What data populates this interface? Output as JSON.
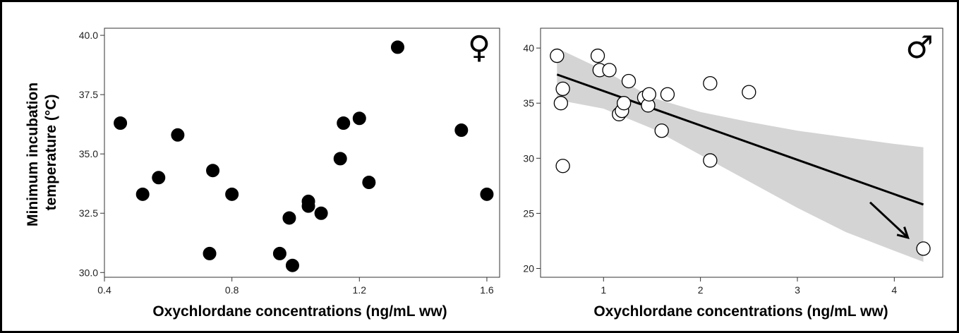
{
  "chart_data": [
    {
      "type": "scatter",
      "panel": "female",
      "symbol": "♀",
      "xlabel": "Oxychlordane concentrations (ng/mL ww)",
      "ylabel_lines": [
        "Minimum incubation",
        "temperature (°C)"
      ],
      "xlim": [
        0.4,
        1.64
      ],
      "ylim": [
        29.8,
        40.3
      ],
      "xticks": [
        0.4,
        0.8,
        1.2,
        1.6
      ],
      "xtick_labels": [
        "0.4",
        "0.8",
        "1.2",
        "1.6"
      ],
      "yticks": [
        30.0,
        32.5,
        35.0,
        37.5,
        40.0
      ],
      "ytick_labels": [
        "30.0",
        "32.5",
        "35.0",
        "37.5",
        "40.0"
      ],
      "grid": false,
      "marker": "filled-circle",
      "marker_color": "#000000",
      "points": [
        {
          "x": 0.45,
          "y": 36.3
        },
        {
          "x": 0.52,
          "y": 33.3
        },
        {
          "x": 0.57,
          "y": 34.0
        },
        {
          "x": 0.63,
          "y": 35.8
        },
        {
          "x": 0.73,
          "y": 30.8
        },
        {
          "x": 0.74,
          "y": 34.3
        },
        {
          "x": 0.8,
          "y": 33.3
        },
        {
          "x": 0.95,
          "y": 30.8
        },
        {
          "x": 0.98,
          "y": 32.3
        },
        {
          "x": 0.99,
          "y": 30.3
        },
        {
          "x": 1.04,
          "y": 32.8
        },
        {
          "x": 1.04,
          "y": 33.0
        },
        {
          "x": 1.08,
          "y": 32.5
        },
        {
          "x": 1.14,
          "y": 34.8
        },
        {
          "x": 1.15,
          "y": 36.3
        },
        {
          "x": 1.2,
          "y": 36.5
        },
        {
          "x": 1.23,
          "y": 33.8
        },
        {
          "x": 1.32,
          "y": 39.5
        },
        {
          "x": 1.52,
          "y": 36.0
        },
        {
          "x": 1.6,
          "y": 33.3
        }
      ]
    },
    {
      "type": "scatter",
      "panel": "male",
      "symbol": "♂",
      "xlabel": "Oxychlordane concentrations (ng/mL ww)",
      "xlim": [
        0.35,
        4.5
      ],
      "ylim": [
        19.2,
        41.8
      ],
      "xticks": [
        1,
        2,
        3,
        4
      ],
      "xtick_labels": [
        "1",
        "2",
        "3",
        "4"
      ],
      "yticks": [
        20,
        25,
        30,
        35,
        40
      ],
      "ytick_labels": [
        "20",
        "25",
        "30",
        "35",
        "40"
      ],
      "grid": false,
      "marker": "open-circle",
      "marker_color": "#000000",
      "band_color": "#d4d4d4",
      "points": [
        {
          "x": 0.52,
          "y": 39.3
        },
        {
          "x": 0.56,
          "y": 35.0
        },
        {
          "x": 0.58,
          "y": 36.3
        },
        {
          "x": 0.58,
          "y": 29.3
        },
        {
          "x": 0.94,
          "y": 39.3
        },
        {
          "x": 0.96,
          "y": 38.0
        },
        {
          "x": 1.06,
          "y": 38.0
        },
        {
          "x": 1.16,
          "y": 34.0
        },
        {
          "x": 1.19,
          "y": 34.3
        },
        {
          "x": 1.21,
          "y": 35.0
        },
        {
          "x": 1.26,
          "y": 37.0
        },
        {
          "x": 1.42,
          "y": 35.5
        },
        {
          "x": 1.46,
          "y": 34.8
        },
        {
          "x": 1.47,
          "y": 35.8
        },
        {
          "x": 1.6,
          "y": 32.5
        },
        {
          "x": 1.66,
          "y": 35.8
        },
        {
          "x": 2.1,
          "y": 36.8
        },
        {
          "x": 2.1,
          "y": 29.8
        },
        {
          "x": 2.5,
          "y": 36.0
        },
        {
          "x": 4.3,
          "y": 21.8
        }
      ],
      "fit_line": {
        "x": [
          0.52,
          4.3
        ],
        "y": [
          37.6,
          25.8
        ]
      },
      "confidence_band": {
        "x": [
          0.52,
          1.0,
          1.5,
          2.0,
          2.5,
          3.0,
          3.5,
          4.0,
          4.3
        ],
        "lower": [
          35.3,
          34.5,
          32.7,
          30.3,
          27.9,
          25.5,
          23.3,
          21.6,
          20.6
        ],
        "upper": [
          40.0,
          38.0,
          35.5,
          34.2,
          33.3,
          32.5,
          31.9,
          31.3,
          31.0
        ]
      },
      "arrow": {
        "from": [
          3.75,
          26.0
        ],
        "to": [
          4.14,
          22.8
        ]
      }
    }
  ]
}
